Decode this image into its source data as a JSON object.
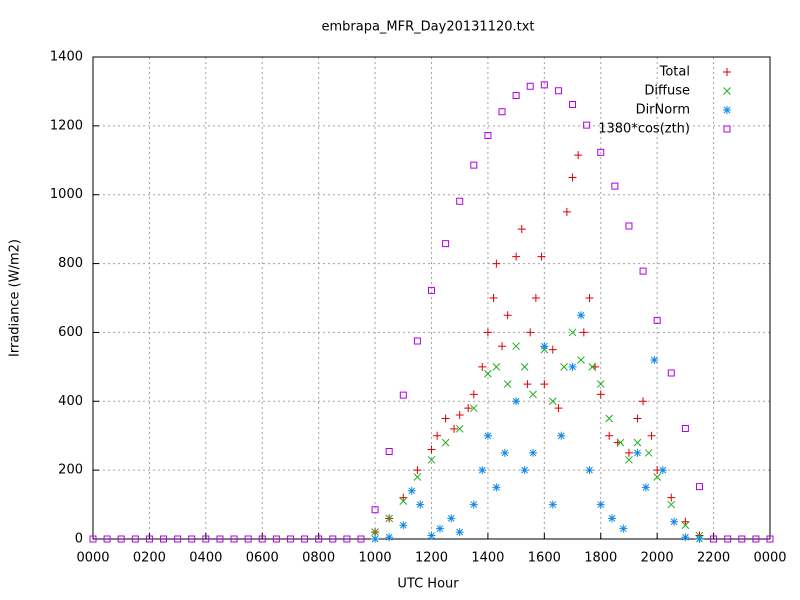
{
  "chart_data": {
    "type": "scatter",
    "title": "embrapa_MFR_Day20131120.txt",
    "x_label": "UTC Hour",
    "y_label": "Irradiance (W/m2)",
    "xlim": [
      0,
      24
    ],
    "xticks": [
      {
        "value": 0,
        "label": "0000"
      },
      {
        "value": 2,
        "label": "0200"
      },
      {
        "value": 4,
        "label": "0400"
      },
      {
        "value": 6,
        "label": "0600"
      },
      {
        "value": 8,
        "label": "0800"
      },
      {
        "value": 10,
        "label": "1000"
      },
      {
        "value": 12,
        "label": "1200"
      },
      {
        "value": 14,
        "label": "1400"
      },
      {
        "value": 16,
        "label": "1600"
      },
      {
        "value": 18,
        "label": "1800"
      },
      {
        "value": 20,
        "label": "2000"
      },
      {
        "value": 22,
        "label": "2200"
      },
      {
        "value": 24,
        "label": "0000"
      }
    ],
    "ylim": [
      0,
      1400
    ],
    "yticks": [
      0,
      200,
      400,
      600,
      800,
      1000,
      1200,
      1400
    ],
    "grid": true,
    "legend": "top-right",
    "series": [
      {
        "name": "Total",
        "color": "#e00000",
        "marker": "plus",
        "x": [
          10,
          10.5,
          11,
          11.5,
          12,
          12.2,
          12.5,
          12.8,
          13,
          13.3,
          13.5,
          13.8,
          14,
          14.2,
          14.3,
          14.5,
          14.7,
          15,
          15.2,
          15.4,
          15.5,
          15.7,
          15.9,
          16,
          16.3,
          16.5,
          16.8,
          17,
          17.2,
          17.4,
          17.6,
          17.8,
          18,
          18.3,
          18.6,
          19,
          19.3,
          19.5,
          19.8,
          20,
          20.5,
          21,
          21.5
        ],
        "values": [
          20,
          60,
          120,
          200,
          260,
          300,
          350,
          320,
          360,
          380,
          420,
          500,
          600,
          700,
          800,
          560,
          650,
          820,
          900,
          450,
          600,
          700,
          820,
          450,
          550,
          380,
          950,
          1050,
          1115,
          600,
          700,
          500,
          420,
          300,
          280,
          250,
          350,
          400,
          300,
          200,
          120,
          50,
          10
        ]
      },
      {
        "name": "Diffuse",
        "color": "#20b020",
        "marker": "cross",
        "x": [
          10,
          10.5,
          11,
          11.5,
          12,
          12.5,
          13,
          13.5,
          14,
          14.3,
          14.7,
          15,
          15.3,
          15.6,
          16,
          16.3,
          16.7,
          17,
          17.3,
          17.7,
          18,
          18.3,
          18.7,
          19,
          19.3,
          19.7,
          20,
          20.5,
          21,
          21.5
        ],
        "values": [
          20,
          60,
          110,
          180,
          230,
          280,
          320,
          380,
          480,
          500,
          450,
          560,
          500,
          420,
          550,
          400,
          500,
          600,
          520,
          500,
          450,
          350,
          280,
          230,
          280,
          250,
          180,
          100,
          40,
          10
        ]
      },
      {
        "name": "DirNorm",
        "color": "#1088e8",
        "marker": "star",
        "x": [
          10,
          10.5,
          11,
          11.3,
          11.6,
          12,
          12.3,
          12.7,
          13,
          13.5,
          13.8,
          14,
          14.3,
          14.6,
          15,
          15.3,
          15.6,
          16,
          16.3,
          16.6,
          17,
          17.3,
          17.6,
          18,
          18.4,
          18.8,
          19.3,
          19.6,
          19.9,
          20.2,
          20.6,
          21,
          21.5
        ],
        "values": [
          0,
          5,
          40,
          140,
          100,
          10,
          30,
          60,
          20,
          100,
          200,
          300,
          150,
          250,
          400,
          200,
          250,
          560,
          100,
          300,
          500,
          650,
          200,
          100,
          60,
          30,
          250,
          150,
          520,
          200,
          50,
          5,
          0
        ]
      },
      {
        "name": "1380*cos(zth)",
        "color": "#b000e8",
        "marker": "square",
        "x": [
          0,
          0.5,
          1,
          1.5,
          2,
          2.5,
          3,
          3.5,
          4,
          4.5,
          5,
          5.5,
          6,
          6.5,
          7,
          7.5,
          8,
          8.5,
          9,
          9.5,
          10,
          10.5,
          11,
          11.5,
          12,
          12.5,
          13,
          13.5,
          14,
          14.5,
          15,
          15.5,
          16,
          16.5,
          17,
          17.5,
          18,
          18.5,
          19,
          19.5,
          20,
          20.5,
          21,
          21.5,
          22,
          22.5,
          23,
          23.5,
          24
        ],
        "values": [
          0,
          0,
          0,
          0,
          0,
          0,
          0,
          0,
          0,
          0,
          0,
          0,
          0,
          0,
          0,
          0,
          0,
          0,
          0,
          0,
          85,
          254,
          418,
          575,
          722,
          858,
          981,
          1086,
          1172,
          1241,
          1288,
          1315,
          1319,
          1302,
          1262,
          1202,
          1123,
          1025,
          909,
          778,
          635,
          482,
          321,
          152,
          0,
          0,
          0,
          0,
          0
        ]
      }
    ]
  }
}
